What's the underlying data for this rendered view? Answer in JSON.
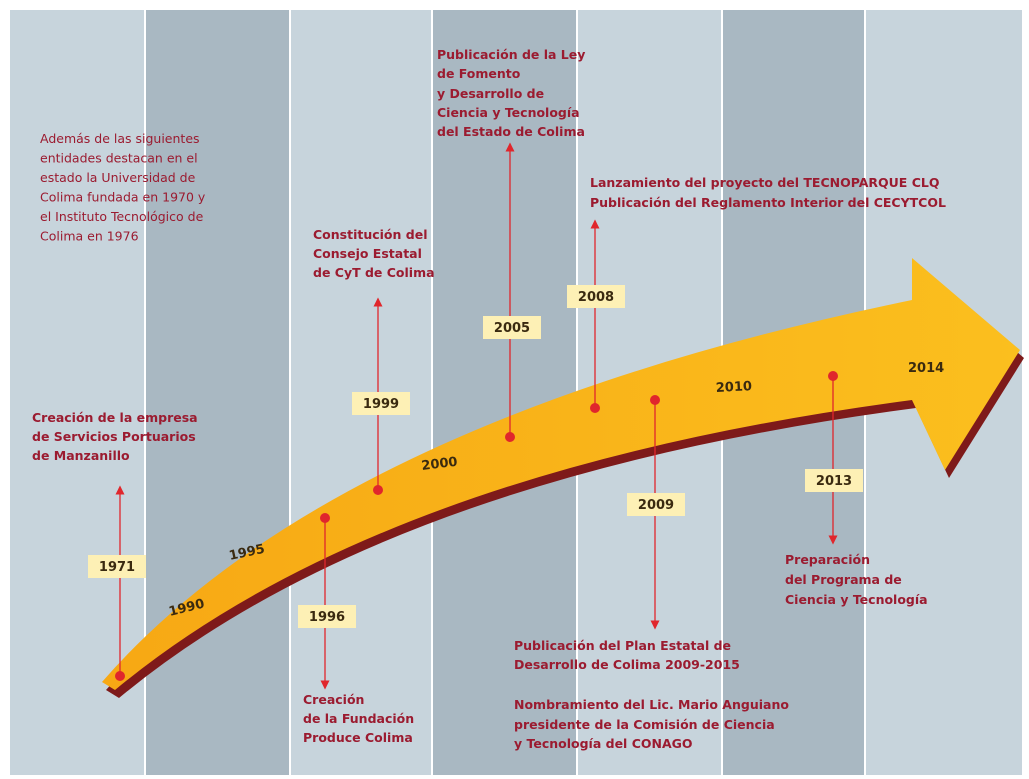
{
  "intro": [
    "Además de las siguientes",
    "entidades destacan en el",
    "estado la Universidad de",
    "Colima fundada en 1970 y",
    "el Instituto Tecnológico de",
    "Colima en 1976"
  ],
  "arrow_years": [
    "1990",
    "1995",
    "2000",
    "2010",
    "2014"
  ],
  "events": [
    {
      "year": "1971",
      "lines": [
        "Creación de la empresa",
        "de Servicios Portuarios",
        "de Manzanillo"
      ]
    },
    {
      "year": "1996",
      "lines": [
        "Creación",
        "de la Fundación",
        "Produce Colima"
      ]
    },
    {
      "year": "1999",
      "lines": [
        "Constitución del",
        "Consejo Estatal",
        "de CyT de Colima"
      ]
    },
    {
      "year": "2005",
      "lines": [
        "Publicación de la Ley",
        "de Fomento",
        "y Desarrollo de",
        "Ciencia y Tecnología",
        "del Estado de Colima"
      ]
    },
    {
      "year": "2008",
      "lines": [
        "Lanzamiento del proyecto del TECNOPARQUE CLQ",
        "Publicación del Reglamento Interior del CECYTCOL"
      ]
    },
    {
      "year": "2009",
      "lines": [
        "Publicación del Plan Estatal de",
        "Desarrollo de Colima 2009-2015",
        "Nombramiento del Lic. Mario Anguiano",
        "presidente de la Comisión de Ciencia",
        "y Tecnología del CONAGO"
      ]
    },
    {
      "year": "2013",
      "lines": [
        "Preparación",
        "del Programa de",
        "Ciencia y Tecnología"
      ]
    }
  ]
}
